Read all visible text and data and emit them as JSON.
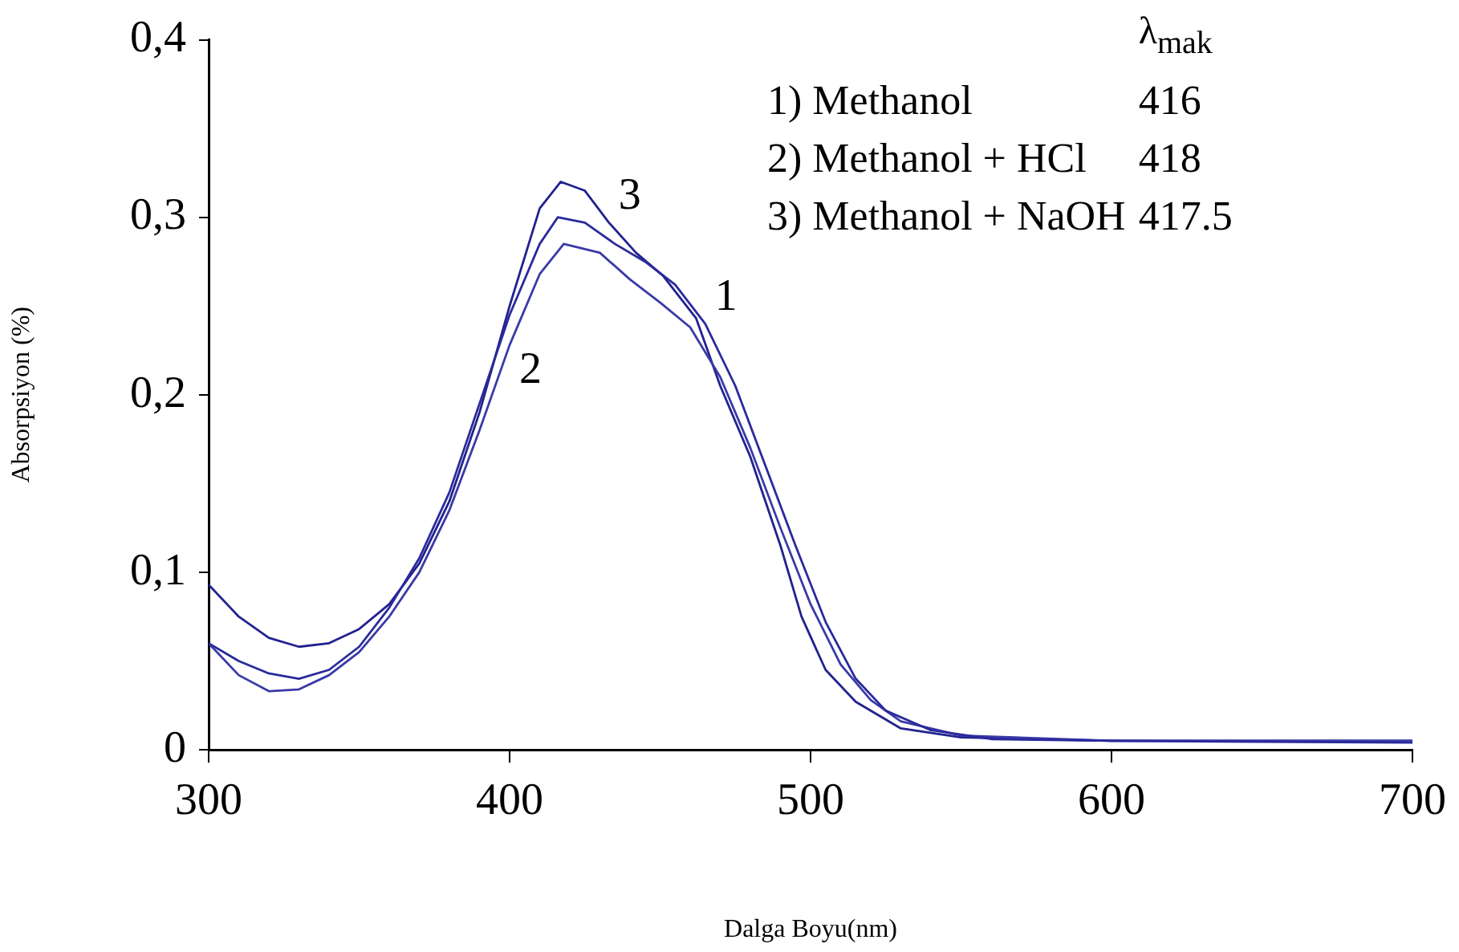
{
  "chart_data": {
    "type": "line",
    "xlabel": "Dalga Boyu(nm)",
    "ylabel": "Absorpsiyon (%)",
    "xlim": [
      300,
      700
    ],
    "xticks": [
      300,
      400,
      500,
      600,
      700
    ],
    "ylim": [
      0,
      0.4
    ],
    "yticks": [
      0,
      {
        "value": 0.1,
        "label": "0,1"
      },
      {
        "value": 0.2,
        "label": "0,2"
      },
      {
        "value": 0.3,
        "label": "0,3"
      },
      {
        "value": 0.4,
        "label": "0,4"
      }
    ],
    "grid": false,
    "legend": false,
    "marker": "none",
    "line_style": "solid",
    "series": [
      {
        "color": "#2a2a9c",
        "x": [
          300,
          310,
          320,
          330,
          340,
          350,
          360,
          370,
          380,
          390,
          400,
          410,
          416,
          425,
          435,
          445,
          455,
          465,
          475,
          485,
          495,
          505,
          515,
          525,
          540,
          560,
          600,
          700
        ],
        "values": [
          0.06,
          0.05,
          0.043,
          0.04,
          0.045,
          0.058,
          0.08,
          0.108,
          0.145,
          0.195,
          0.245,
          0.285,
          0.3,
          0.297,
          0.285,
          0.275,
          0.262,
          0.24,
          0.205,
          0.16,
          0.115,
          0.072,
          0.04,
          0.022,
          0.011,
          0.006,
          0.005,
          0.004
        ]
      },
      {
        "color": "#3a3aa8",
        "x": [
          300,
          310,
          320,
          330,
          340,
          350,
          360,
          370,
          380,
          390,
          400,
          410,
          418,
          430,
          440,
          450,
          460,
          470,
          480,
          490,
          500,
          510,
          520,
          530,
          550,
          600,
          700
        ],
        "values": [
          0.06,
          0.042,
          0.033,
          0.034,
          0.042,
          0.055,
          0.075,
          0.1,
          0.135,
          0.18,
          0.228,
          0.268,
          0.285,
          0.28,
          0.265,
          0.252,
          0.238,
          0.21,
          0.17,
          0.125,
          0.082,
          0.048,
          0.028,
          0.016,
          0.008,
          0.005,
          0.005
        ]
      },
      {
        "color": "#22228f",
        "x": [
          300,
          310,
          320,
          330,
          340,
          350,
          360,
          370,
          380,
          390,
          400,
          410,
          417,
          425,
          433,
          442,
          451,
          462,
          470,
          480,
          490,
          497,
          505,
          515,
          530,
          550,
          600,
          700
        ],
        "values": [
          0.093,
          0.075,
          0.063,
          0.058,
          0.06,
          0.068,
          0.082,
          0.105,
          0.14,
          0.19,
          0.25,
          0.305,
          0.32,
          0.315,
          0.297,
          0.28,
          0.267,
          0.243,
          0.205,
          0.165,
          0.115,
          0.075,
          0.045,
          0.027,
          0.012,
          0.007,
          0.005,
          0.005
        ]
      }
    ],
    "annotations": [
      {
        "text": "1",
        "x": 465,
        "y": 0.24
      },
      {
        "text": "2",
        "x": 400,
        "y": 0.228
      },
      {
        "text": "3",
        "x": 433,
        "y": 0.297
      },
      "λ$_{mak}$",
      "1) Methanol",
      "416",
      "2) Methanol + HCl",
      "418",
      "3) Methanol + NaOH",
      "417.5"
    ]
  }
}
